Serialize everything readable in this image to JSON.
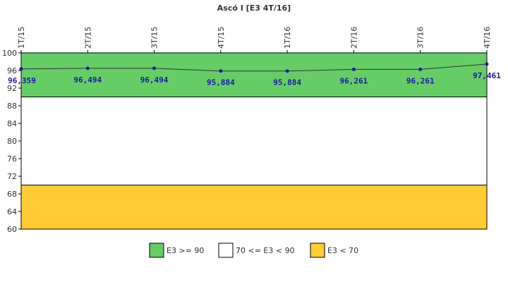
{
  "chart_data": {
    "type": "line",
    "title": "Ascó I [E3 4T/16]",
    "categories": [
      "1T/15",
      "2T/15",
      "3T/15",
      "4T/15",
      "1T/16",
      "2T/16",
      "3T/16",
      "4T/16"
    ],
    "series": [
      {
        "values": [
          96.359,
          96.494,
          96.494,
          95.884,
          95.884,
          96.261,
          96.261,
          97.461
        ],
        "labels": [
          "96,359",
          "96,494",
          "96,494",
          "95,884",
          "95,884",
          "96,261",
          "96,261",
          "97,461"
        ],
        "color": "#1a1aa6"
      }
    ],
    "ylim": [
      60,
      100
    ],
    "yticks": [
      "100",
      "96",
      "92",
      "88",
      "84",
      "80",
      "76",
      "72",
      "68",
      "64",
      "60"
    ],
    "bands": [
      {
        "from": 90,
        "to": 100,
        "color": "#66cc66"
      },
      {
        "from": 70,
        "to": 90,
        "color": "#ffffff"
      },
      {
        "from": 60,
        "to": 70,
        "color": "#ffcc33"
      }
    ],
    "legend": {
      "position": "bottom",
      "items": [
        {
          "label": "E3 >= 90",
          "color": "#66cc66"
        },
        {
          "label": "70 <= E3 < 90",
          "color": "#ffffff"
        },
        {
          "label": "E3 < 70",
          "color": "#ffcc33"
        }
      ]
    },
    "grid": false
  }
}
